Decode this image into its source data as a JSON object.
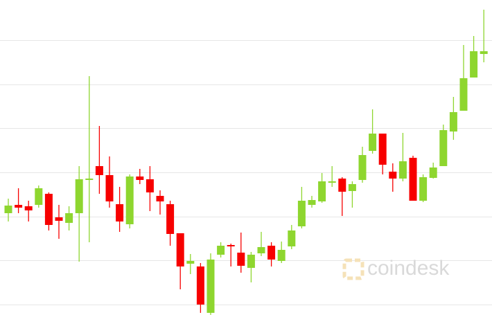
{
  "chart_data": {
    "type": "candlestick",
    "ylim": [
      0,
      458
    ],
    "grid_values": [
      400,
      336,
      273,
      209,
      145,
      82,
      18
    ],
    "up_color": "#8ed62f",
    "down_color": "#f70000",
    "open": [
      150,
      162,
      160,
      162,
      178,
      144,
      136,
      150,
      198,
      218,
      205,
      163,
      134,
      203,
      199,
      175,
      163,
      121,
      77,
      73,
      6,
      90,
      104,
      93,
      71,
      92,
      103,
      81,
      102,
      131,
      162,
      167,
      194,
      200,
      182,
      198,
      240,
      265,
      210,
      200,
      230,
      168,
      201,
      218,
      268,
      298,
      346,
      380
    ],
    "high": [
      171,
      186,
      168,
      190,
      180,
      162,
      160,
      218,
      348,
      276,
      232,
      188,
      206,
      214,
      218,
      183,
      168,
      121,
      91,
      78,
      92,
      108,
      106,
      122,
      94,
      123,
      108,
      109,
      133,
      188,
      175,
      208,
      218,
      202,
      196,
      246,
      300,
      265,
      222,
      266,
      233,
      206,
      223,
      278,
      318,
      393,
      406,
      444
    ],
    "low": [
      138,
      150,
      138,
      158,
      125,
      113,
      125,
      80,
      108,
      178,
      158,
      123,
      128,
      192,
      153,
      148,
      103,
      40,
      62,
      6,
      3,
      86,
      73,
      64,
      50,
      88,
      73,
      78,
      98,
      128,
      158,
      165,
      188,
      146,
      158,
      194,
      236,
      206,
      181,
      196,
      168,
      166,
      200,
      218,
      256,
      298,
      346,
      368
    ],
    "close": [
      161,
      158,
      154,
      186,
      133,
      139,
      150,
      199,
      200,
      205,
      167,
      138,
      203,
      198,
      180,
      167,
      120,
      73,
      81,
      18,
      83,
      103,
      102,
      74,
      90,
      101,
      83,
      97,
      125,
      168,
      169,
      196,
      196,
      181,
      192,
      234,
      265,
      220,
      200,
      225,
      168,
      202,
      216,
      270,
      296,
      345,
      384,
      384
    ],
    "watermark": "coindesk"
  }
}
